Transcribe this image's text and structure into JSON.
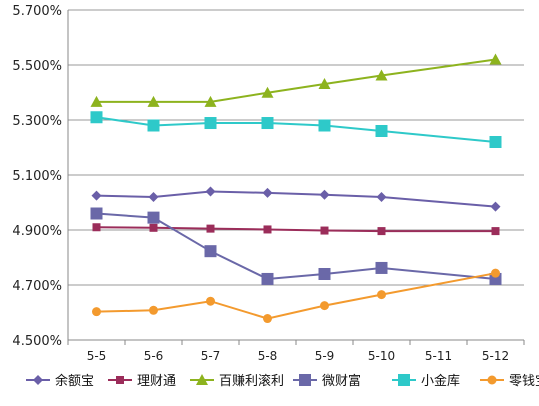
{
  "chart_data": {
    "type": "line",
    "title": "",
    "xlabel": "",
    "ylabel": "",
    "categories": [
      "5-5",
      "5-6",
      "5-7",
      "5-8",
      "5-9",
      "5-10",
      "5-11",
      "5-12"
    ],
    "ylim": [
      4.5,
      5.7
    ],
    "yticks": [
      4.5,
      4.7,
      4.9,
      5.1,
      5.3,
      5.5,
      5.7
    ],
    "ytick_labels": [
      "4.500%",
      "4.700%",
      "4.900%",
      "5.100%",
      "5.300%",
      "5.500%",
      "5.700%"
    ],
    "grid": "horizontal",
    "legend_position": "bottom",
    "series": [
      {
        "name": "余额宝",
        "color": "#6A5FA8",
        "marker": "diamond",
        "values": [
          5.025,
          5.02,
          5.04,
          5.035,
          5.028,
          5.02,
          null,
          4.985
        ]
      },
      {
        "name": "理财通",
        "color": "#9B2D5A",
        "marker": "square",
        "values": [
          4.91,
          4.908,
          4.905,
          4.902,
          4.898,
          4.896,
          null,
          4.896
        ]
      },
      {
        "name": "百赚利滚利",
        "color": "#8DB31E",
        "marker": "triangle",
        "values": [
          5.366,
          5.366,
          5.366,
          5.399,
          5.431,
          5.462,
          null,
          5.52
        ]
      },
      {
        "name": "微财富",
        "color": "#6A68A8",
        "marker": "square-large",
        "values": [
          4.96,
          4.945,
          4.823,
          4.722,
          4.74,
          4.762,
          null,
          4.722
        ]
      },
      {
        "name": "小金库",
        "color": "#2EC9C9",
        "marker": "square-large",
        "values": [
          5.31,
          5.28,
          5.289,
          5.289,
          5.28,
          5.26,
          null,
          5.22
        ]
      },
      {
        "name": "零钱宝",
        "color": "#F39A2E",
        "marker": "circle",
        "values": [
          4.603,
          4.608,
          4.641,
          4.578,
          4.625,
          4.665,
          null,
          4.743
        ]
      }
    ]
  }
}
